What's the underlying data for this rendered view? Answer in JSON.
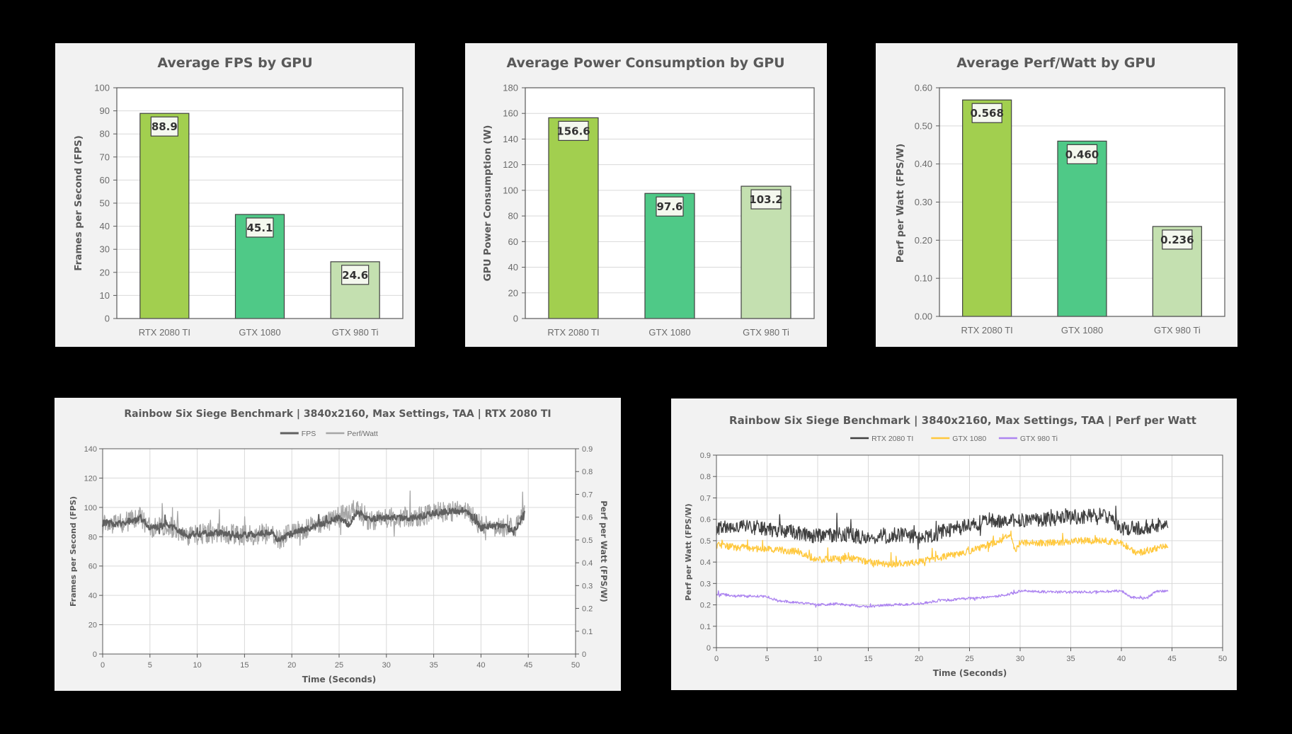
{
  "chart_data": [
    {
      "type": "bar",
      "title": "Average FPS by GPU",
      "xlabel": "",
      "ylabel": "Frames per Second (FPS)",
      "categories": [
        "RTX 2080 TI",
        "GTX 1080",
        "GTX 980 Ti"
      ],
      "values": [
        88.9,
        45.1,
        24.6
      ],
      "value_labels": [
        "88.9",
        "45.1",
        "24.6"
      ],
      "ylim": [
        0,
        100
      ],
      "yticks": [
        "0",
        "10",
        "20",
        "30",
        "40",
        "50",
        "60",
        "70",
        "80",
        "90",
        "100"
      ],
      "bar_colors": [
        "#a2cf4f",
        "#4fc987",
        "#c4e0b0"
      ],
      "grid": true
    },
    {
      "type": "bar",
      "title": "Average Power Consumption by GPU",
      "xlabel": "",
      "ylabel": "GPU Power Consumption (W)",
      "categories": [
        "RTX 2080 TI",
        "GTX 1080",
        "GTX 980 Ti"
      ],
      "values": [
        156.6,
        97.6,
        103.2
      ],
      "value_labels": [
        "156.6",
        "97.6",
        "103.2"
      ],
      "ylim": [
        0,
        180
      ],
      "yticks": [
        "0",
        "20",
        "40",
        "60",
        "80",
        "100",
        "120",
        "140",
        "160",
        "180"
      ],
      "bar_colors": [
        "#a2cf4f",
        "#4fc987",
        "#c4e0b0"
      ],
      "grid": true
    },
    {
      "type": "bar",
      "title": "Average Perf/Watt by GPU",
      "xlabel": "",
      "ylabel": "Perf per Watt (FPS/W)",
      "categories": [
        "RTX 2080 TI",
        "GTX 1080",
        "GTX 980 Ti"
      ],
      "values": [
        0.568,
        0.46,
        0.236
      ],
      "value_labels": [
        "0.568",
        "0.460",
        "0.236"
      ],
      "ylim": [
        0,
        0.6
      ],
      "yticks": [
        "0.00",
        "0.10",
        "0.20",
        "0.30",
        "0.40",
        "0.50",
        "0.60"
      ],
      "bar_colors": [
        "#a2cf4f",
        "#4fc987",
        "#c4e0b0"
      ],
      "grid": true
    },
    {
      "type": "line",
      "title": "Rainbow Six Siege Benchmark | 3840x2160, Max Settings, TAA | RTX 2080 TI",
      "xlabel": "Time (Seconds)",
      "ylabel": "Frames per Second (FPS)",
      "y2label": "Perf per Watt (FPS/W)",
      "xlim": [
        0,
        50
      ],
      "ylim": [
        0,
        140
      ],
      "y2lim": [
        0,
        0.9
      ],
      "xticks": [
        "0",
        "5",
        "10",
        "15",
        "20",
        "25",
        "30",
        "35",
        "40",
        "45",
        "50"
      ],
      "yticks": [
        "0",
        "20",
        "40",
        "60",
        "80",
        "100",
        "120",
        "140"
      ],
      "y2ticks": [
        "0",
        "0.1",
        "0.2",
        "0.3",
        "0.4",
        "0.5",
        "0.6",
        "0.7",
        "0.8",
        "0.9"
      ],
      "legend_position": "top",
      "grid": true,
      "series": [
        {
          "name": "Perf/Watt",
          "axis": "right",
          "color": "#a6a6a6",
          "noise": 0.045,
          "x": [
            0,
            2,
            4,
            5,
            7,
            9,
            12,
            15,
            18,
            18.5,
            20,
            23,
            25,
            27,
            28,
            30,
            33,
            35,
            38,
            39,
            40,
            42,
            43.5,
            44.6
          ],
          "y": [
            0.57,
            0.57,
            0.6,
            0.55,
            0.56,
            0.52,
            0.53,
            0.52,
            0.53,
            0.5,
            0.53,
            0.57,
            0.6,
            0.64,
            0.58,
            0.6,
            0.6,
            0.62,
            0.63,
            0.61,
            0.56,
            0.56,
            0.55,
            0.61
          ]
        },
        {
          "name": "FPS",
          "axis": "left",
          "color": "#606060",
          "noise": 2.2,
          "x": [
            0,
            2,
            4,
            5,
            7,
            9,
            12,
            15,
            18,
            18.5,
            20,
            23,
            25,
            26,
            27,
            28,
            30,
            33,
            35,
            38,
            39,
            40,
            42,
            43.5,
            44.6
          ],
          "y": [
            89,
            89,
            93,
            86,
            88,
            81,
            83,
            81,
            83,
            78,
            82,
            88,
            93,
            88,
            98,
            92,
            93,
            93,
            96,
            98,
            94,
            86,
            88,
            84,
            96
          ]
        }
      ]
    },
    {
      "type": "line",
      "title": "Rainbow Six Siege Benchmark | 3840x2160, Max Settings, TAA | Perf per Watt",
      "xlabel": "Time (Seconds)",
      "ylabel": "Perf per Watt (FPS/W)",
      "xlim": [
        0,
        50
      ],
      "ylim": [
        0,
        0.9
      ],
      "xticks": [
        "0",
        "5",
        "10",
        "15",
        "20",
        "25",
        "30",
        "35",
        "40",
        "45",
        "50"
      ],
      "yticks": [
        "0",
        "0.1",
        "0.2",
        "0.3",
        "0.4",
        "0.5",
        "0.6",
        "0.7",
        "0.8",
        "0.9"
      ],
      "legend_position": "top",
      "grid": true,
      "series": [
        {
          "name": "RTX 2080 TI",
          "color": "#404040",
          "noise": 0.035,
          "x": [
            0,
            3,
            5,
            8,
            10,
            13,
            15,
            18,
            20,
            23,
            25,
            27,
            29,
            32,
            35,
            38,
            39,
            40,
            42,
            44.6
          ],
          "y": [
            0.56,
            0.57,
            0.55,
            0.54,
            0.52,
            0.53,
            0.51,
            0.53,
            0.51,
            0.55,
            0.57,
            0.6,
            0.59,
            0.6,
            0.61,
            0.62,
            0.6,
            0.56,
            0.56,
            0.58
          ]
        },
        {
          "name": "GTX 1080",
          "color": "#ffc83d",
          "noise": 0.016,
          "x": [
            0,
            2,
            5,
            8,
            10,
            13,
            15,
            17,
            20,
            22,
            25,
            28,
            29,
            29.5,
            30,
            33,
            36,
            38,
            40,
            41.5,
            43,
            44.6
          ],
          "y": [
            0.48,
            0.47,
            0.46,
            0.45,
            0.41,
            0.42,
            0.4,
            0.39,
            0.4,
            0.42,
            0.45,
            0.5,
            0.53,
            0.45,
            0.49,
            0.49,
            0.5,
            0.5,
            0.49,
            0.44,
            0.46,
            0.48
          ]
        },
        {
          "name": "GTX 980 Ti",
          "color": "#ad85f0",
          "noise": 0.006,
          "x": [
            0,
            3,
            5,
            6,
            10,
            12,
            15,
            17,
            20,
            22,
            25,
            27,
            29,
            30,
            33,
            37,
            40,
            41,
            42.5,
            43.5,
            44.6
          ],
          "y": [
            0.25,
            0.24,
            0.24,
            0.22,
            0.2,
            0.205,
            0.19,
            0.2,
            0.205,
            0.22,
            0.23,
            0.235,
            0.25,
            0.265,
            0.26,
            0.26,
            0.265,
            0.235,
            0.23,
            0.265,
            0.265
          ]
        }
      ]
    }
  ]
}
